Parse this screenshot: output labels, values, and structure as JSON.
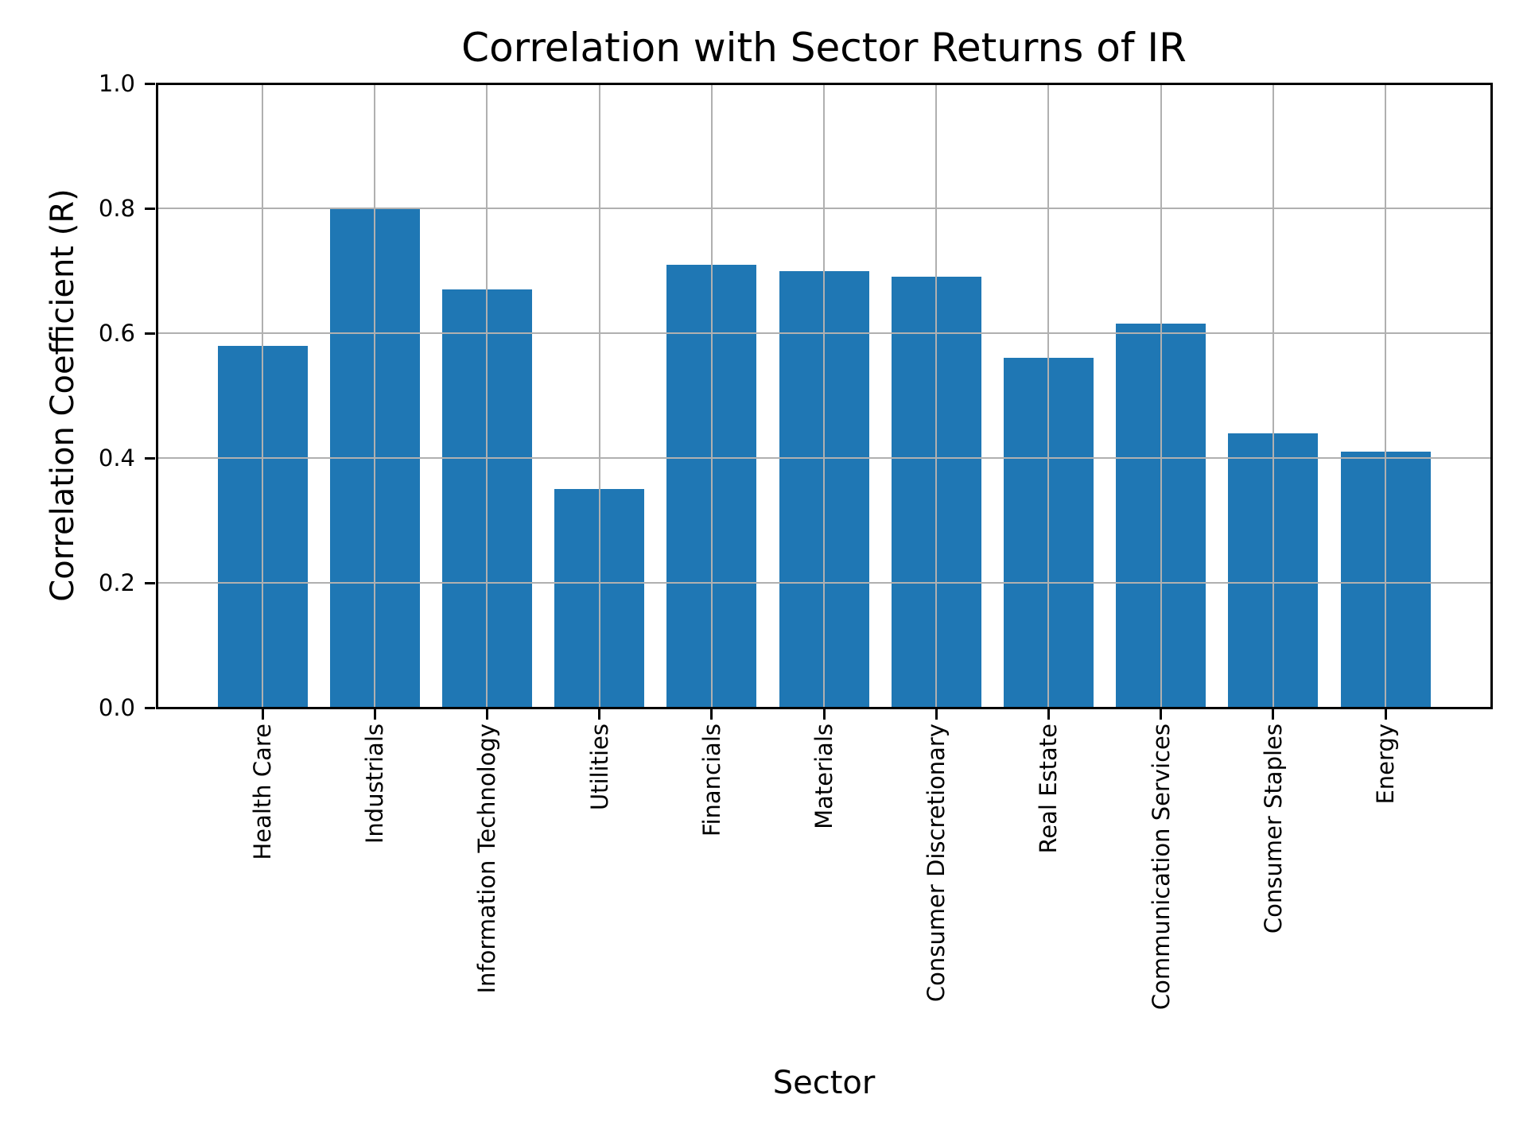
{
  "figure": {
    "background": "#ffffff"
  },
  "chart_data": {
    "type": "bar",
    "title": "Correlation with Sector Returns of IR",
    "xlabel": "Sector",
    "ylabel": "Correlation Coefficient (R)",
    "categories": [
      "Health Care",
      "Industrials",
      "Information Technology",
      "Utilities",
      "Financials",
      "Materials",
      "Consumer Discretionary",
      "Real Estate",
      "Communication Services",
      "Consumer Staples",
      "Energy"
    ],
    "values": [
      0.58,
      0.8,
      0.67,
      0.35,
      0.71,
      0.7,
      0.69,
      0.56,
      0.615,
      0.44,
      0.41
    ],
    "ylim": [
      0.0,
      1.0
    ],
    "ytick_labels": [
      "0.0",
      "0.2",
      "0.4",
      "0.6",
      "0.8",
      "1.0"
    ],
    "grid": "on",
    "legend": "none",
    "bar_color": "#1f77b4",
    "grid_color": "#b0b0b0",
    "axis_color": "#000000",
    "text_color": "#000000"
  }
}
